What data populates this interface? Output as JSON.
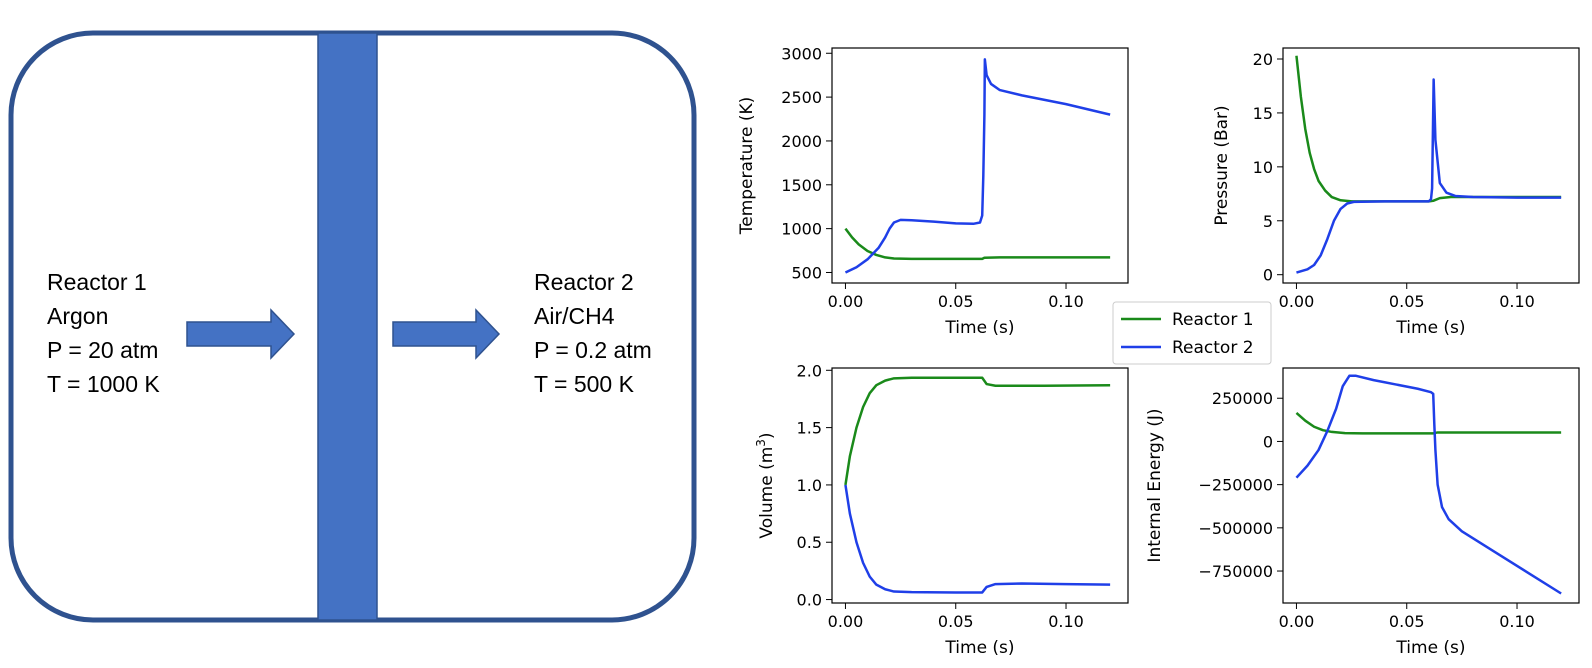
{
  "colors": {
    "reactor1": "#1a8a1a",
    "reactor2": "#1f3fe8",
    "wall": "#4472c4",
    "vessel_border": "#2f528f"
  },
  "diagram": {
    "reactor1": {
      "title": "Reactor 1",
      "gas": "Argon",
      "pressure": "P = 20 atm",
      "temperature": "T = 1000 K"
    },
    "reactor2": {
      "title": "Reactor 2",
      "gas": "Air/CH4",
      "pressure": "P = 0.2 atm",
      "temperature": "T = 500 K"
    }
  },
  "legend": [
    "Reactor 1",
    "Reactor 2"
  ],
  "chart_data": [
    {
      "type": "line",
      "id": "temperature",
      "xlabel": "Time (s)",
      "ylabel": "Temperature (K)",
      "xlim": [
        -0.0061,
        0.1281
      ],
      "ylim": [
        380,
        3060
      ],
      "xticks": [
        0,
        0.05,
        0.1
      ],
      "xtick_labels": [
        "0.00",
        "0.05",
        "0.10"
      ],
      "yticks": [
        500,
        1000,
        1500,
        2000,
        2500,
        3000
      ],
      "ytick_labels": [
        "500",
        "1000",
        "1500",
        "2000",
        "2500",
        "3000"
      ],
      "series": [
        {
          "name": "Reactor 1",
          "color_key": "reactor1",
          "points": [
            [
              0,
              1000
            ],
            [
              0.003,
              900
            ],
            [
              0.006,
              820
            ],
            [
              0.01,
              745
            ],
            [
              0.014,
              700
            ],
            [
              0.018,
              672
            ],
            [
              0.022,
              660
            ],
            [
              0.03,
              655
            ],
            [
              0.04,
              655
            ],
            [
              0.05,
              655
            ],
            [
              0.062,
              655
            ],
            [
              0.063,
              668
            ],
            [
              0.07,
              672
            ],
            [
              0.09,
              672
            ],
            [
              0.12,
              672
            ]
          ]
        },
        {
          "name": "Reactor 2",
          "color_key": "reactor2",
          "points": [
            [
              0,
              500
            ],
            [
              0.005,
              560
            ],
            [
              0.01,
              650
            ],
            [
              0.015,
              780
            ],
            [
              0.018,
              900
            ],
            [
              0.02,
              1000
            ],
            [
              0.022,
              1070
            ],
            [
              0.025,
              1100
            ],
            [
              0.03,
              1095
            ],
            [
              0.04,
              1080
            ],
            [
              0.05,
              1060
            ],
            [
              0.058,
              1055
            ],
            [
              0.061,
              1070
            ],
            [
              0.062,
              1150
            ],
            [
              0.0625,
              1600
            ],
            [
              0.063,
              2300
            ],
            [
              0.0632,
              2930
            ],
            [
              0.064,
              2750
            ],
            [
              0.066,
              2650
            ],
            [
              0.07,
              2580
            ],
            [
              0.08,
              2520
            ],
            [
              0.1,
              2420
            ],
            [
              0.12,
              2300
            ]
          ]
        }
      ]
    },
    {
      "type": "line",
      "id": "pressure",
      "xlabel": "Time (s)",
      "ylabel": "Pressure (Bar)",
      "xlim": [
        -0.0061,
        0.1281
      ],
      "ylim": [
        -0.77,
        21.02
      ],
      "xticks": [
        0,
        0.05,
        0.1
      ],
      "xtick_labels": [
        "0.00",
        "0.05",
        "0.10"
      ],
      "yticks": [
        0,
        5,
        10,
        15,
        20
      ],
      "ytick_labels": [
        "0",
        "5",
        "10",
        "15",
        "20"
      ],
      "series": [
        {
          "name": "Reactor 1",
          "color_key": "reactor1",
          "points": [
            [
              0,
              20.3
            ],
            [
              0.002,
              16.5
            ],
            [
              0.004,
              13.5
            ],
            [
              0.006,
              11.3
            ],
            [
              0.008,
              9.8
            ],
            [
              0.01,
              8.7
            ],
            [
              0.013,
              7.8
            ],
            [
              0.016,
              7.2
            ],
            [
              0.02,
              6.9
            ],
            [
              0.025,
              6.8
            ],
            [
              0.04,
              6.8
            ],
            [
              0.06,
              6.8
            ],
            [
              0.062,
              6.85
            ],
            [
              0.065,
              7.1
            ],
            [
              0.07,
              7.2
            ],
            [
              0.1,
              7.2
            ],
            [
              0.12,
              7.2
            ]
          ]
        },
        {
          "name": "Reactor 2",
          "color_key": "reactor2",
          "points": [
            [
              0,
              0.2
            ],
            [
              0.005,
              0.5
            ],
            [
              0.008,
              0.9
            ],
            [
              0.011,
              1.8
            ],
            [
              0.014,
              3.3
            ],
            [
              0.017,
              5.0
            ],
            [
              0.02,
              6.1
            ],
            [
              0.023,
              6.6
            ],
            [
              0.026,
              6.75
            ],
            [
              0.04,
              6.8
            ],
            [
              0.06,
              6.8
            ],
            [
              0.061,
              7.0
            ],
            [
              0.0615,
              8.0
            ],
            [
              0.0622,
              18.1
            ],
            [
              0.063,
              12.5
            ],
            [
              0.065,
              8.5
            ],
            [
              0.068,
              7.6
            ],
            [
              0.072,
              7.3
            ],
            [
              0.08,
              7.2
            ],
            [
              0.1,
              7.15
            ],
            [
              0.12,
              7.15
            ]
          ]
        }
      ]
    },
    {
      "type": "line",
      "id": "volume",
      "xlabel": "Time (s)",
      "ylabel": "Volume (m",
      "ylabel_sup": "3",
      "ylabel_suffix": ")",
      "xlim": [
        -0.0061,
        0.1281
      ],
      "ylim": [
        -0.03,
        2.02
      ],
      "xticks": [
        0,
        0.05,
        0.1
      ],
      "xtick_labels": [
        "0.00",
        "0.05",
        "0.10"
      ],
      "yticks": [
        0,
        0.5,
        1.0,
        1.5,
        2.0
      ],
      "ytick_labels": [
        "0.0",
        "0.5",
        "1.0",
        "1.5",
        "2.0"
      ],
      "series": [
        {
          "name": "Reactor 1",
          "color_key": "reactor1",
          "points": [
            [
              0,
              1.0
            ],
            [
              0.002,
              1.25
            ],
            [
              0.005,
              1.5
            ],
            [
              0.008,
              1.68
            ],
            [
              0.011,
              1.8
            ],
            [
              0.014,
              1.87
            ],
            [
              0.018,
              1.91
            ],
            [
              0.022,
              1.93
            ],
            [
              0.03,
              1.935
            ],
            [
              0.05,
              1.935
            ],
            [
              0.062,
              1.935
            ],
            [
              0.064,
              1.88
            ],
            [
              0.068,
              1.865
            ],
            [
              0.09,
              1.865
            ],
            [
              0.12,
              1.87
            ]
          ]
        },
        {
          "name": "Reactor 2",
          "color_key": "reactor2",
          "points": [
            [
              0,
              1.0
            ],
            [
              0.002,
              0.75
            ],
            [
              0.005,
              0.5
            ],
            [
              0.008,
              0.32
            ],
            [
              0.011,
              0.2
            ],
            [
              0.014,
              0.13
            ],
            [
              0.018,
              0.09
            ],
            [
              0.022,
              0.07
            ],
            [
              0.03,
              0.065
            ],
            [
              0.05,
              0.062
            ],
            [
              0.062,
              0.062
            ],
            [
              0.064,
              0.11
            ],
            [
              0.068,
              0.135
            ],
            [
              0.08,
              0.14
            ],
            [
              0.1,
              0.135
            ],
            [
              0.12,
              0.13
            ]
          ]
        }
      ]
    },
    {
      "type": "line",
      "id": "internal_energy",
      "xlabel": "Time (s)",
      "ylabel": "Internal Energy (J)",
      "xlim": [
        -0.0061,
        0.1281
      ],
      "ylim": [
        -935000,
        425000
      ],
      "xticks": [
        0,
        0.05,
        0.1
      ],
      "xtick_labels": [
        "0.00",
        "0.05",
        "0.10"
      ],
      "yticks": [
        -750000,
        -500000,
        -250000,
        0,
        250000
      ],
      "ytick_labels": [
        "−750000",
        "−500000",
        "−250000",
        "0",
        "250000"
      ],
      "series": [
        {
          "name": "Reactor 1",
          "color_key": "reactor1",
          "points": [
            [
              0,
              165000
            ],
            [
              0.004,
              120000
            ],
            [
              0.008,
              85000
            ],
            [
              0.012,
              65000
            ],
            [
              0.016,
              55000
            ],
            [
              0.022,
              48000
            ],
            [
              0.03,
              47000
            ],
            [
              0.05,
              47000
            ],
            [
              0.062,
              47000
            ],
            [
              0.064,
              52000
            ],
            [
              0.08,
              52000
            ],
            [
              0.1,
              52000
            ],
            [
              0.12,
              52000
            ]
          ]
        },
        {
          "name": "Reactor 2",
          "color_key": "reactor2",
          "points": [
            [
              0,
              -210000
            ],
            [
              0.005,
              -140000
            ],
            [
              0.01,
              -50000
            ],
            [
              0.014,
              60000
            ],
            [
              0.018,
              190000
            ],
            [
              0.021,
              320000
            ],
            [
              0.024,
              380000
            ],
            [
              0.027,
              380000
            ],
            [
              0.035,
              355000
            ],
            [
              0.045,
              330000
            ],
            [
              0.055,
              305000
            ],
            [
              0.061,
              285000
            ],
            [
              0.062,
              275000
            ],
            [
              0.0625,
              100000
            ],
            [
              0.063,
              -50000
            ],
            [
              0.064,
              -250000
            ],
            [
              0.066,
              -380000
            ],
            [
              0.069,
              -450000
            ],
            [
              0.075,
              -520000
            ],
            [
              0.09,
              -640000
            ],
            [
              0.105,
              -760000
            ],
            [
              0.12,
              -880000
            ]
          ]
        }
      ]
    }
  ]
}
